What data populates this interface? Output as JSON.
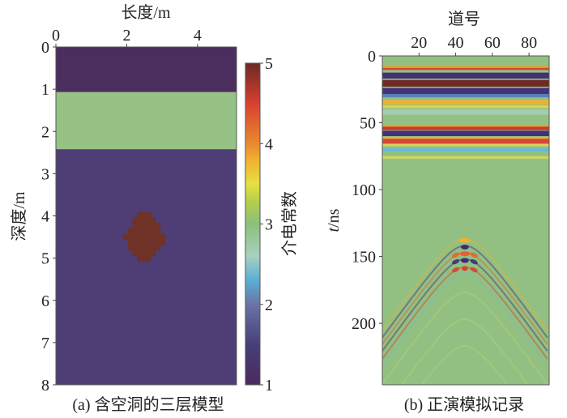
{
  "chart_data": [
    {
      "type": "heatmap",
      "panel": "a",
      "caption": "(a) 含空洞的三层模型",
      "xlabel": "长度/m",
      "ylabel": "深度/m",
      "xlim": [
        0,
        5.1
      ],
      "ylim": [
        8,
        0
      ],
      "xticks": [
        "0",
        "2",
        "4"
      ],
      "xtick_values": [
        0,
        2,
        4
      ],
      "yticks": [
        "0",
        "1",
        "2",
        "3",
        "4",
        "5",
        "6",
        "7",
        "8"
      ],
      "ytick_values": [
        0,
        1,
        2,
        3,
        4,
        5,
        6,
        7,
        8
      ],
      "layers": [
        {
          "name": "top-layer",
          "depth_from": 0,
          "depth_to": 1.07,
          "permittivity": 1.2
        },
        {
          "name": "middle-layer",
          "depth_from": 1.07,
          "depth_to": 2.42,
          "permittivity": 3.0
        },
        {
          "name": "bottom-layer",
          "depth_from": 2.42,
          "depth_to": 8,
          "permittivity": 1.5
        }
      ],
      "cavity": {
        "center_x": 2.5,
        "center_depth": 4.5,
        "radius": 0.6,
        "permittivity": 5
      },
      "colorbar": {
        "label": "介电常数",
        "range": [
          1,
          5
        ],
        "ticks": [
          "1",
          "2",
          "3",
          "4",
          "5"
        ],
        "tick_values": [
          1,
          2,
          3,
          4,
          5
        ],
        "stops": [
          {
            "v": 1.0,
            "c": "#4a2a5e"
          },
          {
            "v": 1.5,
            "c": "#463f78"
          },
          {
            "v": 2.0,
            "c": "#6b74a6"
          },
          {
            "v": 2.3,
            "c": "#5aaed6"
          },
          {
            "v": 2.6,
            "c": "#a8d0c0"
          },
          {
            "v": 3.0,
            "c": "#8cc07a"
          },
          {
            "v": 3.3,
            "c": "#b8d04a"
          },
          {
            "v": 3.5,
            "c": "#e6e040"
          },
          {
            "v": 3.8,
            "c": "#f0b030"
          },
          {
            "v": 4.0,
            "c": "#e88a30"
          },
          {
            "v": 4.5,
            "c": "#d84030"
          },
          {
            "v": 5.0,
            "c": "#6a2a24"
          }
        ]
      },
      "colors": {
        "top": "#4b2d5e",
        "middle": "#97c285",
        "bottom": "#4e3e75",
        "cavity": "#6e3226"
      }
    },
    {
      "type": "heatmap",
      "panel": "b",
      "caption": "(b) 正演模拟记录",
      "xlabel": "道号",
      "ylabel_italic": "t",
      "ylabel_rest": "/ns",
      "xlim": [
        0,
        91
      ],
      "ylim": [
        246,
        0
      ],
      "xticks": [
        "20",
        "40",
        "60",
        "80"
      ],
      "xtick_values": [
        20,
        40,
        60,
        80
      ],
      "yticks": [
        "0",
        "50",
        "100",
        "150",
        "200"
      ],
      "ytick_values": [
        0,
        50,
        100,
        150,
        200
      ],
      "background": "#92c083",
      "direct_wave_bands": [
        {
          "t": 7.5,
          "h": 1.5,
          "c": "#e8a030"
        },
        {
          "t": 9,
          "h": 1.5,
          "c": "#d84030"
        },
        {
          "t": 12.5,
          "h": 4.5,
          "c": "#3e2a6e"
        },
        {
          "t": 18,
          "h": 5,
          "c": "#6a2420"
        },
        {
          "t": 24,
          "h": 4.5,
          "c": "#3e2a7a"
        },
        {
          "t": 28.5,
          "h": 2.5,
          "c": "#5a7ab8"
        },
        {
          "t": 33,
          "h": 3.5,
          "c": "#f0b030"
        },
        {
          "t": 37,
          "h": 2,
          "c": "#d8d850"
        },
        {
          "t": 40,
          "h": 4,
          "c": "#a4ccb4"
        },
        {
          "t": 51.5,
          "h": 1.5,
          "c": "#e8a030"
        },
        {
          "t": 53,
          "h": 2.5,
          "c": "#d03028"
        },
        {
          "t": 56,
          "h": 4,
          "c": "#3e2a78"
        },
        {
          "t": 60.5,
          "h": 1.5,
          "c": "#f0b030"
        },
        {
          "t": 62,
          "h": 3.5,
          "c": "#d84030"
        },
        {
          "t": 66,
          "h": 1.5,
          "c": "#e8d050"
        },
        {
          "t": 69,
          "h": 2.5,
          "c": "#6ab8d8"
        },
        {
          "t": 75,
          "h": 2,
          "c": "#cfd860"
        }
      ],
      "hyperbola": {
        "apex_trace": 45,
        "apex_t": 137,
        "velocity_ratio": 1.2
      },
      "hyperbola_events": [
        {
          "dt": 0,
          "c": "#f0b030",
          "w": 6,
          "strong": true
        },
        {
          "dt": 5,
          "c": "#3e2a7a",
          "w": 4,
          "strong": true
        },
        {
          "dt": 10,
          "c": "#e86030",
          "w": 5,
          "strong": true
        },
        {
          "dt": 15,
          "c": "#3e2a7a",
          "w": 4,
          "strong": true
        },
        {
          "dt": 21,
          "c": "#d84030",
          "w": 3,
          "strong": true
        },
        {
          "dt": 26,
          "c": "#6ab8d8",
          "w": 2,
          "strong": false
        },
        {
          "dt": 40,
          "c": "#cfd860",
          "w": 2,
          "strong": false
        },
        {
          "dt": 60,
          "c": "#cfd860",
          "w": 2,
          "strong": false
        },
        {
          "dt": 80,
          "c": "#cfd860",
          "w": 2,
          "strong": false
        }
      ]
    }
  ]
}
